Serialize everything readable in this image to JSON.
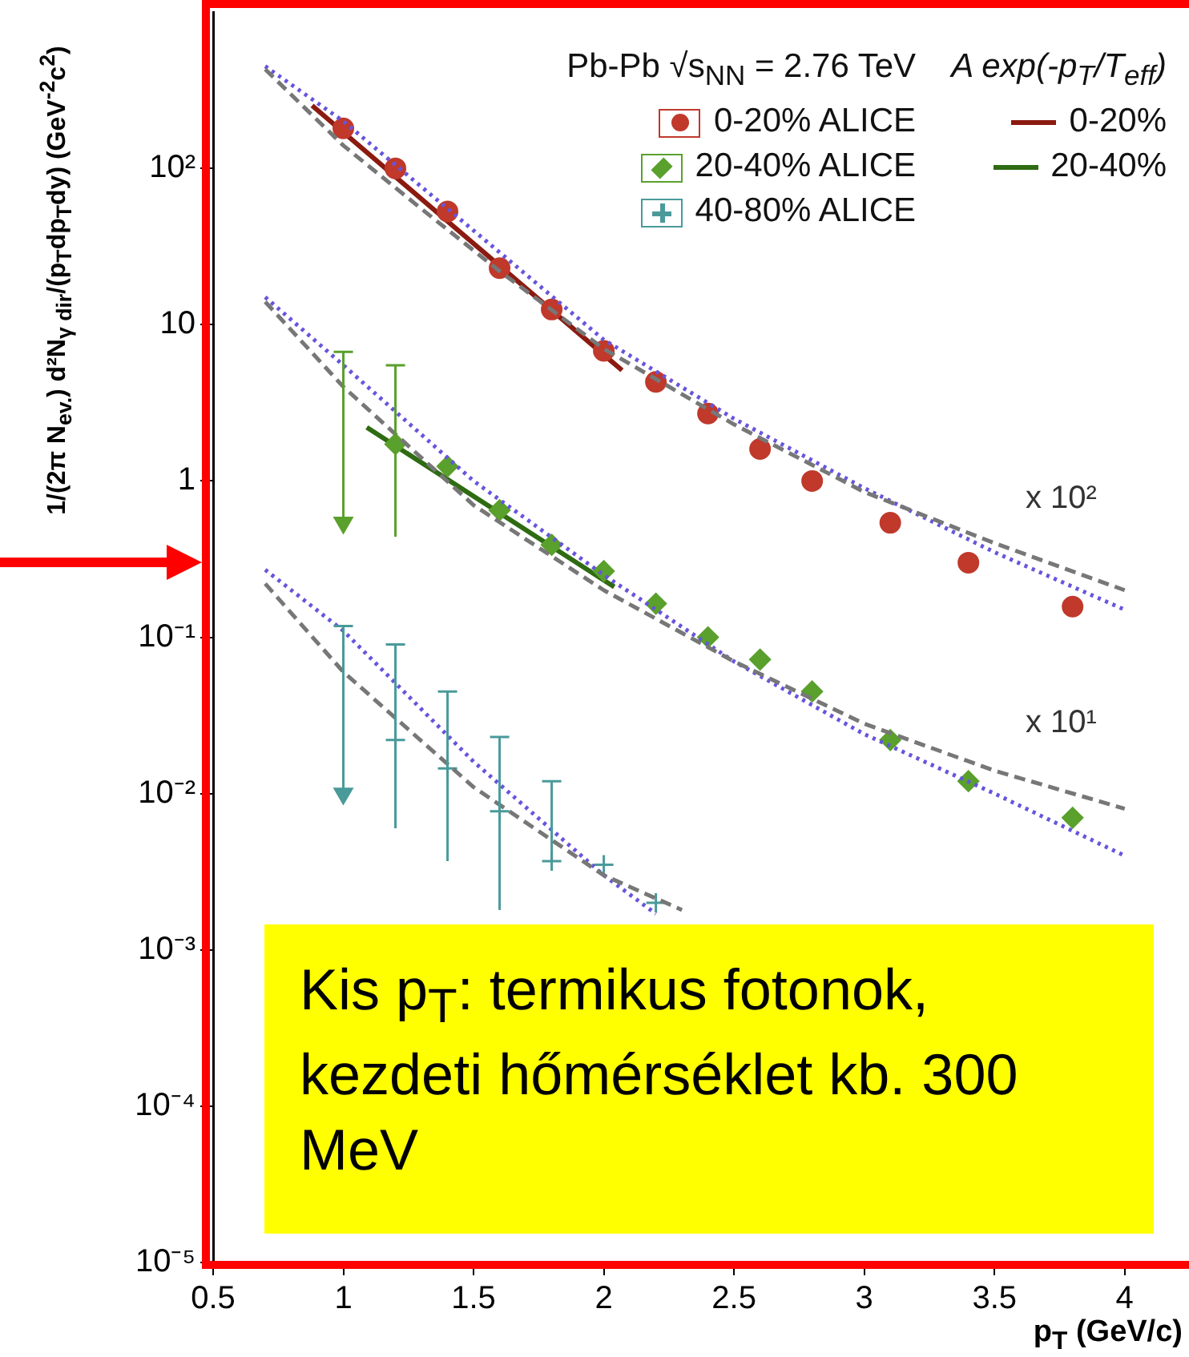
{
  "chart_data": {
    "type": "scatter",
    "xlabel": "p$_{T}$ (GeV/c)",
    "ylabel": "1/(2π N$_{ev.}$) d²N$_{γ dir}$/(p$_{T}$dp$_{T}$dy) (GeV$^{-2}$c$^{2}$)",
    "legend_title": "Pb-Pb √s$_{NN}$ = 2.76 TeV",
    "legend": "top right",
    "log": "y",
    "grid": false,
    "xlim": [
      0.5,
      4.25
    ],
    "xticks": [
      0.5,
      1,
      1.5,
      2,
      2.5,
      3,
      3.5,
      4
    ],
    "ylim": [
      1e-05,
      1000
    ],
    "yticks": [
      {
        "value": 1e-05,
        "label": "10⁻⁵"
      },
      {
        "value": 0.0001,
        "label": "10⁻⁴"
      },
      {
        "value": 0.001,
        "label": "10⁻³"
      },
      {
        "value": 0.01,
        "label": "10⁻²"
      },
      {
        "value": 0.1,
        "label": "10⁻¹"
      },
      1,
      10,
      {
        "value": 100,
        "label": "10²"
      }
    ],
    "annotations": [
      "A exp(-p$_{T}$/T$_{eff}$)",
      "Kis p$_{T}$: termikus fotonok, kezdeti hőmérséklet kb. 300 MeV",
      "x 10²",
      "x 10¹"
    ],
    "series": [
      {
        "type": "line",
        "color": "#777777",
        "line_style": "dashed",
        "marker": "none",
        "x": [
          0.7,
          1.0,
          1.3,
          1.6,
          2.0,
          2.5,
          3.0,
          3.5,
          4.0
        ],
        "values": [
          430,
          140,
          55,
          22,
          7,
          2.3,
          0.85,
          0.4,
          0.2
        ]
      },
      {
        "type": "line",
        "color": "#6655dd",
        "line_style": "dotted",
        "marker": "none",
        "x": [
          0.7,
          1.0,
          1.5,
          2.0,
          2.5,
          3.0,
          3.5,
          4.0
        ],
        "values": [
          450,
          200,
          40,
          8,
          2.5,
          0.9,
          0.35,
          0.15
        ]
      },
      {
        "type": "line",
        "color": "#777777",
        "line_style": "dashed",
        "marker": "none",
        "x": [
          0.7,
          1.0,
          1.5,
          2.0,
          2.5,
          3.0,
          3.5,
          4.0
        ],
        "values": [
          14,
          4,
          0.7,
          0.2,
          0.07,
          0.028,
          0.014,
          0.008
        ]
      },
      {
        "type": "line",
        "color": "#6655dd",
        "line_style": "dotted",
        "marker": "none",
        "x": [
          0.7,
          1.0,
          1.5,
          2.0,
          2.5,
          3.0,
          3.5,
          4.0
        ],
        "values": [
          15,
          5.5,
          1.0,
          0.25,
          0.07,
          0.024,
          0.01,
          0.004
        ]
      },
      {
        "type": "line",
        "color": "#777777",
        "line_style": "dashed",
        "marker": "none",
        "x": [
          0.7,
          1.0,
          1.5,
          2.0,
          2.3
        ],
        "values": [
          0.22,
          0.06,
          0.011,
          0.003,
          0.0018
        ]
      },
      {
        "type": "line",
        "color": "#6655dd",
        "line_style": "dotted",
        "marker": "none",
        "x": [
          0.7,
          1.0,
          1.5,
          2.0,
          2.2
        ],
        "values": [
          0.27,
          0.11,
          0.016,
          0.003,
          0.0017
        ]
      },
      {
        "name": "0-20% ALICE",
        "color": "#c0392b",
        "marker": "circle",
        "x": [
          1.0,
          1.2,
          1.4,
          1.6,
          1.8,
          2.0,
          2.2,
          2.4,
          2.6,
          2.8,
          3.1,
          3.4,
          3.8
        ],
        "values": [
          180,
          100,
          53,
          23,
          12.5,
          6.8,
          4.3,
          2.7,
          1.6,
          1.0,
          0.54,
          0.3,
          0.157
        ]
      },
      {
        "name": "20-40% ALICE",
        "color": "#5aa02c",
        "marker": "diamond",
        "x": [
          1.2,
          1.4,
          1.6,
          1.8,
          2.0,
          2.2,
          2.4,
          2.6,
          2.8,
          3.1,
          3.4,
          3.8
        ],
        "values": [
          1.72,
          1.24,
          0.65,
          0.39,
          0.265,
          0.164,
          0.1,
          0.072,
          0.045,
          0.022,
          0.012,
          0.007
        ],
        "errors": [
          [
            0.44,
            5.5
          ],
          null,
          null,
          null,
          null,
          null,
          null,
          null,
          null,
          null,
          null,
          null
        ]
      },
      {
        "name": "40-80% ALICE",
        "color": "#4a9a9a",
        "marker": "cross",
        "x": [
          1.2,
          1.4,
          1.6,
          1.8,
          2.0,
          2.2
        ],
        "values": [
          0.022,
          0.0145,
          0.0077,
          0.0037,
          0.0035,
          0.002
        ],
        "errors": [
          [
            0.006,
            0.09
          ],
          [
            0.0037,
            0.045
          ],
          [
            0.0018,
            0.023
          ],
          [
            0.0037,
            0.012
          ],
          null,
          null
        ]
      },
      {
        "color": "#5aa02c",
        "marker": "triangle",
        "x": [
          1.0
        ],
        "values": [
          0.54
        ],
        "errors": [
          [
            0.54,
            6.7
          ]
        ]
      },
      {
        "color": "#4a9a9a",
        "marker": "triangle",
        "x": [
          1.0
        ],
        "values": [
          0.01
        ],
        "errors": [
          [
            0.01,
            0.118
          ]
        ]
      },
      {
        "type": "line",
        "name": "0-20%",
        "color": "#8b1a10",
        "line_style": "solid",
        "marker": "none",
        "x": [
          0.88,
          2.07
        ],
        "values": [
          252,
          5.1
        ]
      },
      {
        "type": "line",
        "name": "20-40%",
        "color": "#2e6b12",
        "line_style": "solid",
        "marker": "none",
        "x": [
          1.09,
          2.04
        ],
        "values": [
          2.2,
          0.21
        ]
      }
    ]
  }
}
